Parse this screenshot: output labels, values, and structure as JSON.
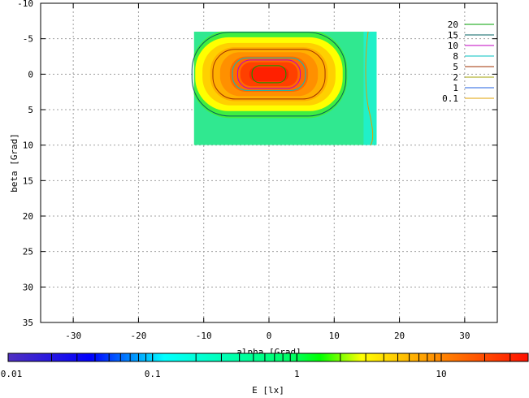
{
  "chart_data": {
    "type": "heatmap",
    "xlabel": "alpha [Grad]",
    "ylabel": "beta [Grad]",
    "x_ticks": [
      -30,
      -20,
      -10,
      0,
      10,
      20,
      30
    ],
    "y_ticks": [
      -10,
      -5,
      0,
      5,
      10,
      15,
      20,
      25,
      30,
      35
    ],
    "xlim": [
      -35,
      35
    ],
    "ylim": [
      -10,
      35
    ],
    "y_axis_inverted": true,
    "grid": true,
    "legend_placement": "top-right",
    "heatmap_extent": {
      "x": [
        -11.5,
        16.5
      ],
      "y": [
        -6,
        10
      ]
    },
    "contour_levels": [
      {
        "label": "20",
        "value": 20,
        "color": "#00a000"
      },
      {
        "label": "15",
        "value": 15,
        "color": "#006060"
      },
      {
        "label": "10",
        "value": 10,
        "color": "#c000c0"
      },
      {
        "label": "8",
        "value": 8,
        "color": "#00c0c0"
      },
      {
        "label": "5",
        "value": 5,
        "color": "#a03000"
      },
      {
        "label": "2",
        "value": 2,
        "color": "#a0a000"
      },
      {
        "label": "1",
        "value": 1,
        "color": "#2060e0"
      },
      {
        "label": "0.1",
        "value": 0.1,
        "color": "#e0a000"
      }
    ],
    "colorbar": {
      "label": "E [lx]",
      "scale": "log",
      "range": [
        0.01,
        40
      ],
      "tick_labels": [
        {
          "label": "0.01",
          "value": 0.01
        },
        {
          "label": "0.1",
          "value": 0.1
        },
        {
          "label": "1",
          "value": 1
        },
        {
          "label": "10",
          "value": 10
        }
      ]
    }
  }
}
